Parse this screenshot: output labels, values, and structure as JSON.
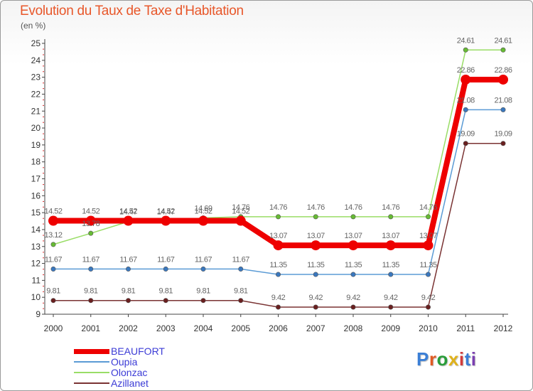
{
  "title": "Evolution du Taux de Taxe d'Habitation",
  "subtitle": "(en %)",
  "logo": {
    "text": "Proxiti",
    "letter_colors": [
      "#3b7fd6",
      "#e05a23",
      "#2a9d3a",
      "#e0b21b",
      "#d13b3b",
      "#3b7fd6",
      "#7a3fb0"
    ]
  },
  "chart_data": {
    "type": "line",
    "title": "Evolution du Taux de Taxe d'Habitation",
    "ylabel": "(en %)",
    "xlabel": "",
    "categories": [
      "2000",
      "2001",
      "2002",
      "2003",
      "2004",
      "2005",
      "2006",
      "2007",
      "2008",
      "2009",
      "2010",
      "2011",
      "2012"
    ],
    "ylim": [
      9,
      25
    ],
    "yticks": [
      9,
      10,
      11,
      12,
      13,
      14,
      15,
      16,
      17,
      18,
      19,
      20,
      21,
      22,
      23,
      24,
      25
    ],
    "grid": false,
    "legend_position": "bottom-left",
    "series": [
      {
        "name": "BEAUFORT",
        "color": "#ee0000",
        "weight": "bold",
        "values": [
          14.52,
          14.52,
          14.52,
          14.52,
          14.52,
          14.52,
          13.07,
          13.07,
          13.07,
          13.07,
          13.07,
          22.86,
          22.86
        ],
        "labels": [
          "14.52",
          "14.52",
          "14.52",
          "14.52",
          "14.52",
          "14.52",
          "13.07",
          "13.07",
          "13.07",
          "13.07",
          "13.07",
          "22.86",
          "22.86"
        ]
      },
      {
        "name": "Oupia",
        "color": "#5b9bd5",
        "marker": "#3a78bf",
        "values": [
          11.67,
          11.67,
          11.67,
          11.67,
          11.67,
          11.67,
          11.35,
          11.35,
          11.35,
          11.35,
          11.35,
          21.08,
          21.08
        ],
        "labels": [
          "11.67",
          "11.67",
          "11.67",
          "11.67",
          "11.67",
          "11.67",
          "11.35",
          "11.35",
          "11.35",
          "11.35",
          "11.35",
          "21.08",
          "21.08"
        ]
      },
      {
        "name": "Olonzac",
        "color": "#99dd66",
        "marker": "#66bb33",
        "values": [
          13.12,
          13.78,
          14.47,
          14.47,
          14.69,
          14.76,
          14.76,
          14.76,
          14.76,
          14.76,
          14.76,
          24.61,
          24.61
        ],
        "labels": [
          "13.12",
          "13.78",
          "14.47",
          "14.47",
          "14.69",
          "14.76",
          "14.76",
          "14.76",
          "14.76",
          "14.76",
          "14.76",
          "24.61",
          "24.61"
        ]
      },
      {
        "name": "Azillanet",
        "color": "#7a3333",
        "marker": "#6a1f1f",
        "values": [
          9.81,
          9.81,
          9.81,
          9.81,
          9.81,
          9.81,
          9.42,
          9.42,
          9.42,
          9.42,
          9.42,
          19.09,
          19.09
        ],
        "labels": [
          "9.81",
          "9.81",
          "9.81",
          "9.81",
          "9.81",
          "9.81",
          "9.42",
          "9.42",
          "9.42",
          "9.42",
          "9.42",
          "19.09",
          "19.09"
        ]
      }
    ]
  }
}
